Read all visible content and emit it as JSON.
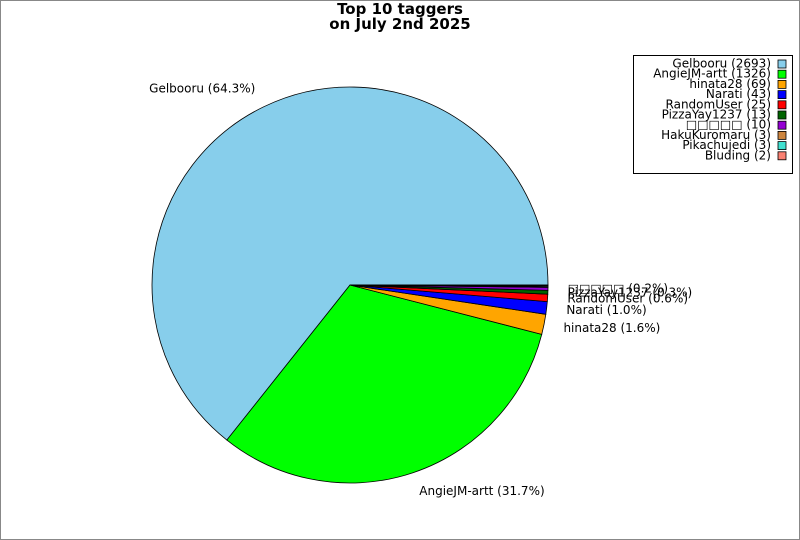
{
  "chart_data": {
    "type": "pie",
    "title": "Top 10 taggers\non July 2nd 2025",
    "categories": [
      "Gelbooru (2693)",
      "AngieJM-artt (1326)",
      "hinata28 (69)",
      "Narati (43)",
      "RandomUser (25)",
      "PizzaYay1237 (13)",
      "□□□□□ (10)",
      "HakuKuromaru (3)",
      "Pikachujedi (3)",
      "Bluding (2)"
    ],
    "values": [
      2693,
      1326,
      69,
      43,
      25,
      13,
      10,
      3,
      3,
      2
    ],
    "value_labels": [
      "Gelbooru (64.3%)",
      "AngieJM-artt (31.7%)",
      "hinata28 (1.6%)",
      "Narati (1.0%)",
      "RandomUser (0.6%)",
      "PizzaYay1237 (0.3%)",
      "□□□□□ (0.2%)",
      null,
      null,
      null
    ],
    "colors": [
      "#87ceeb",
      "#00ff00",
      "#ffa500",
      "#0000ff",
      "#ff0000",
      "#006400",
      "#9400d3",
      "#cd853f",
      "#40e0d0",
      "#fa8072"
    ],
    "legend": "upper right"
  }
}
